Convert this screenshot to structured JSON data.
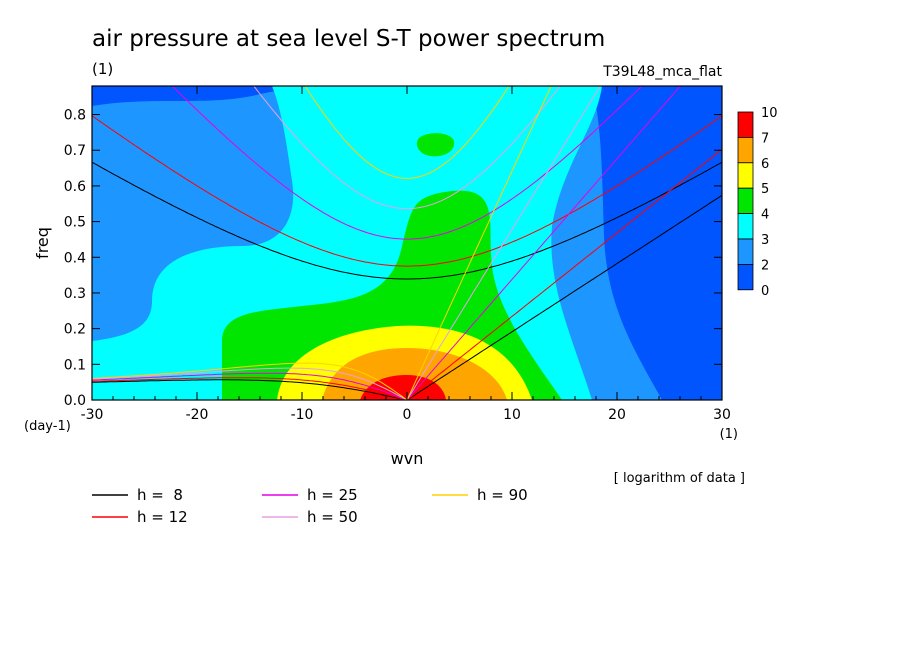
{
  "chart_data": {
    "type": "heatmap",
    "title": "air pressure at sea level S-T power spectrum",
    "units": "(1)",
    "run_label": "T39L48_mca_flat",
    "xlabel": "wvn",
    "ylabel": "freq",
    "x_unit": "(1)",
    "y_unit": "(day-1)",
    "xlim": [
      -30,
      30
    ],
    "ylim": [
      0,
      0.88
    ],
    "x_ticks": [
      "-30",
      "-20",
      "-10",
      "0",
      "10",
      "20",
      "30"
    ],
    "y_ticks": [
      "0.0",
      "0.1",
      "0.2",
      "0.3",
      "0.4",
      "0.5",
      "0.6",
      "0.7",
      "0.8"
    ],
    "note": "[ logarithm of data ]",
    "colorbar": {
      "labels": [
        "10",
        "7",
        "6",
        "5",
        "4",
        "3",
        "2",
        "0"
      ],
      "colors": [
        "#ff0000",
        "#ffa500",
        "#ffff00",
        "#00e600",
        "#00ffff",
        "#1e96ff",
        "#0055ff"
      ]
    },
    "contour_levels": [
      {
        "level": "0-2",
        "color": "#0055ff"
      },
      {
        "level": "2-3",
        "color": "#1e96ff"
      },
      {
        "level": "3-4",
        "color": "#00ffff"
      },
      {
        "level": "4-5",
        "color": "#00e600"
      },
      {
        "level": "5-6",
        "color": "#ffff00"
      },
      {
        "level": "6-7",
        "color": "#ffa500"
      },
      {
        "level": "7-10",
        "color": "#ff0000"
      }
    ],
    "series": [
      {
        "name": "h =  8",
        "h": 8,
        "color": "#000000"
      },
      {
        "name": "h = 12",
        "h": 12,
        "color": "#ff0000"
      },
      {
        "name": "h = 25",
        "h": 25,
        "color": "#e600e6"
      },
      {
        "name": "h = 50",
        "h": 50,
        "color": "#e6a0e6"
      },
      {
        "name": "h = 90",
        "h": 90,
        "color": "#ffd200"
      }
    ]
  }
}
